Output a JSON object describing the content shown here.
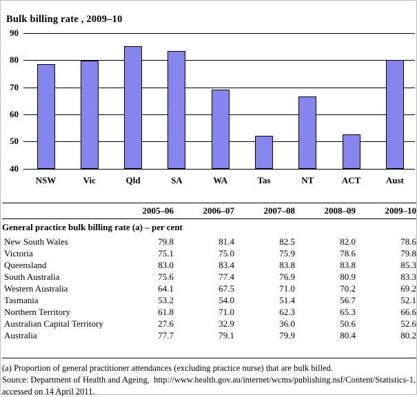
{
  "chart_data": {
    "type": "bar",
    "title": "Bulk billing rate , 2009–10",
    "categories": [
      "NSW",
      "Vic",
      "Qld",
      "SA",
      "WA",
      "Tas",
      "NT",
      "ACT",
      "Aust"
    ],
    "values": [
      78.6,
      79.8,
      85.3,
      83.3,
      69.2,
      52.1,
      66.6,
      52.6,
      80.2
    ],
    "ylim": [
      40,
      90
    ],
    "ytick_step": 10,
    "grid": true,
    "legend_position": "none",
    "bar_color": "#8585ee",
    "hatched_category": "Aust",
    "xlabel": "",
    "ylabel": ""
  },
  "table": {
    "headers": [
      "",
      "2005–06",
      "2006–07",
      "2007–08",
      "2008–09",
      "2009–10"
    ],
    "section_header": "General practice bulk billing rate (a) – per cent",
    "rows": [
      [
        "New South Wales",
        "79.8",
        "81.4",
        "82.5",
        "82.0",
        "78.6"
      ],
      [
        "Victoria",
        "75.1",
        "75.0",
        "75.9",
        "78.6",
        "79.8"
      ],
      [
        "Queensland",
        "83.0",
        "83.4",
        "83.8",
        "83.8",
        "85.3"
      ],
      [
        "South Australia",
        "75.6",
        "77.4",
        "76.9",
        "80.9",
        "83.3"
      ],
      [
        "Western Australia",
        "64.1",
        "67.5",
        "71.0",
        "70.2",
        "69.2"
      ],
      [
        "Tasmania",
        "53.2",
        "54.0",
        "51.4",
        "56.7",
        "52.1"
      ],
      [
        "Northern Territory",
        "61.8",
        "71.0",
        "62.3",
        "65.3",
        "66.6"
      ],
      [
        "Australian Capital Territory",
        "27.6",
        "32.9",
        "36.0",
        "50.6",
        "52.6"
      ],
      [
        "Australia",
        "77.7",
        "79.1",
        "79.9",
        "80.4",
        "80.2"
      ]
    ]
  },
  "footnotes": {
    "note_a": "(a) Proportion of general practitioner attendances (excluding practice nurse) that are bulk billed.",
    "source_line1": "Source: Department of Health and Ageing,  http://www.health.gov.au/internet/wcms/publishing.nsf/Content/Statistics-1,",
    "source_line2": "accessed on 14 April 2011."
  }
}
